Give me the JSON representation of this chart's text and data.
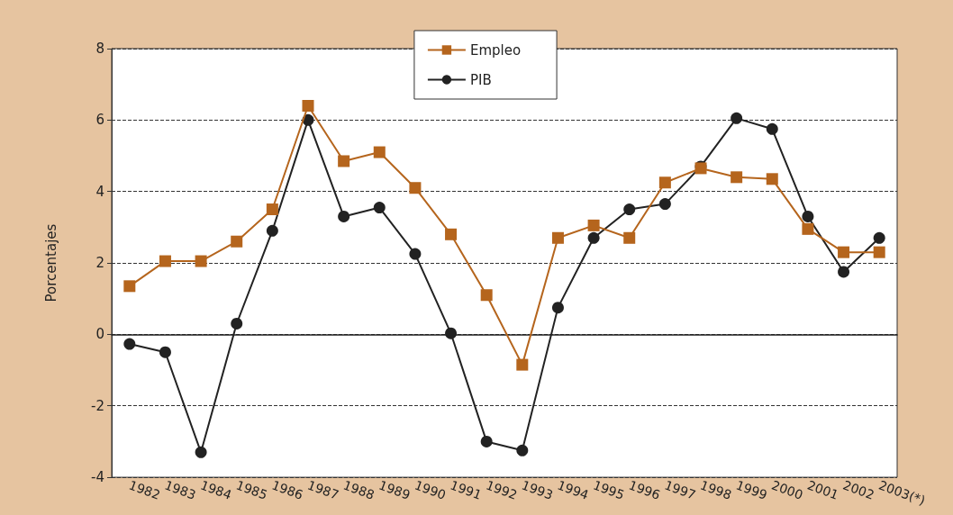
{
  "chart_data": {
    "type": "line",
    "ylabel": "Porcentajes",
    "categories": [
      "1982",
      "1983",
      "1984",
      "1985",
      "1986",
      "1987",
      "1988",
      "1989",
      "1990",
      "1991",
      "1992",
      "1993",
      "1994",
      "1995",
      "1996",
      "1997",
      "1998",
      "1999",
      "2000",
      "2001",
      "2002",
      "2003(*)"
    ],
    "series": [
      {
        "name": "Empleo",
        "color": "#b5651d",
        "marker": "square",
        "values": [
          1.35,
          2.05,
          2.05,
          2.6,
          3.5,
          6.4,
          4.85,
          5.1,
          4.1,
          2.8,
          1.1,
          -0.85,
          2.7,
          3.05,
          2.7,
          4.25,
          4.65,
          4.4,
          4.35,
          2.95,
          2.3,
          2.3
        ]
      },
      {
        "name": "PIB",
        "color": "#222222",
        "marker": "circle",
        "values": [
          -0.27,
          -0.5,
          -3.3,
          0.3,
          2.9,
          6.0,
          3.3,
          3.55,
          2.25,
          0.03,
          -3.0,
          -3.25,
          0.75,
          2.7,
          3.5,
          3.65,
          4.7,
          6.05,
          5.75,
          3.3,
          1.75,
          2.7
        ]
      }
    ],
    "ylim": [
      -4,
      8
    ],
    "yticks": [
      -4,
      -2,
      0,
      2,
      4,
      6,
      8
    ],
    "grid": "y",
    "legend": "top",
    "line_style": "solid"
  }
}
